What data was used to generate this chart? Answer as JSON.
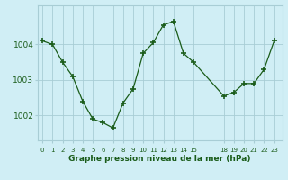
{
  "x": [
    0,
    1,
    2,
    3,
    4,
    5,
    6,
    7,
    8,
    9,
    10,
    11,
    12,
    13,
    14,
    15,
    18,
    19,
    20,
    21,
    22,
    23
  ],
  "y": [
    1004.1,
    1004.0,
    1003.5,
    1003.1,
    1002.4,
    1001.9,
    1001.8,
    1001.65,
    1002.35,
    1002.75,
    1003.75,
    1004.05,
    1004.55,
    1004.65,
    1003.75,
    1003.5,
    1002.55,
    1002.65,
    1002.9,
    1002.9,
    1003.3,
    1004.1
  ],
  "line_color": "#1a5c1a",
  "marker": "+",
  "marker_size": 4,
  "marker_linewidth": 1.2,
  "linewidth": 0.9,
  "background_color": "#d0eef5",
  "grid_color": "#a8cdd5",
  "title": "Graphe pression niveau de la mer (hPa)",
  "title_color": "#1a5c1a",
  "xlabel_ticks": [
    0,
    1,
    2,
    3,
    4,
    5,
    6,
    7,
    8,
    9,
    10,
    11,
    12,
    13,
    14,
    15,
    18,
    19,
    20,
    21,
    22,
    23
  ],
  "ylim": [
    1001.3,
    1005.1
  ],
  "yticks": [
    1002,
    1003,
    1004
  ],
  "xlim": [
    -0.5,
    23.8
  ]
}
